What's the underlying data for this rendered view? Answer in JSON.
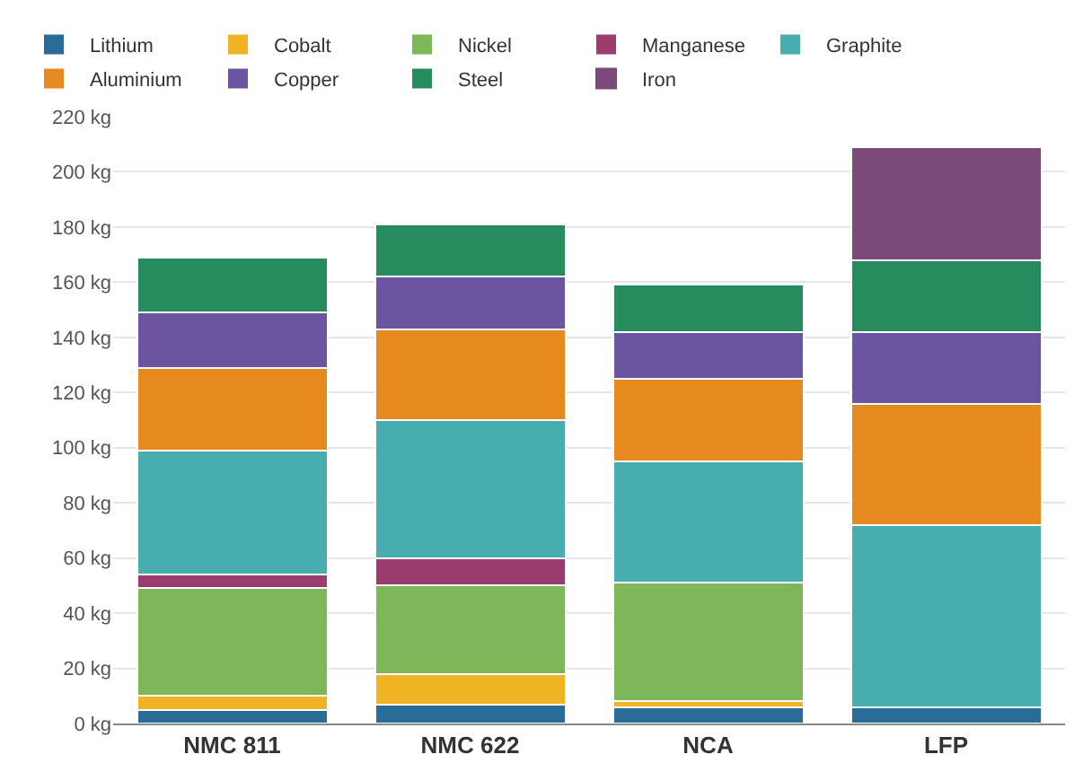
{
  "chart_data": {
    "type": "bar",
    "stacked": true,
    "categories": [
      "NMC 811",
      "NMC 622",
      "NCA",
      "LFP"
    ],
    "series": [
      {
        "name": "Lithium",
        "color": "#2a6c98",
        "values": [
          5,
          7,
          6,
          6
        ]
      },
      {
        "name": "Cobalt",
        "color": "#f0b323",
        "values": [
          5,
          11,
          2,
          0
        ]
      },
      {
        "name": "Nickel",
        "color": "#7eb65a",
        "values": [
          39,
          32,
          43,
          0
        ]
      },
      {
        "name": "Manganese",
        "color": "#9b3c6e",
        "values": [
          5,
          10,
          0,
          0
        ]
      },
      {
        "name": "Graphite",
        "color": "#48adaf",
        "values": [
          45,
          50,
          44,
          66
        ]
      },
      {
        "name": "Aluminium",
        "color": "#e6891f",
        "values": [
          30,
          33,
          30,
          44
        ]
      },
      {
        "name": "Copper",
        "color": "#6b55a0",
        "values": [
          20,
          19,
          17,
          26
        ]
      },
      {
        "name": "Steel",
        "color": "#268c5e",
        "values": [
          20,
          19,
          17,
          26
        ]
      },
      {
        "name": "Iron",
        "color": "#7b4a78",
        "values": [
          0,
          0,
          0,
          41
        ]
      }
    ],
    "ylim": [
      0,
      220
    ],
    "yticks": [
      {
        "value": 0,
        "label": "0 kg"
      },
      {
        "value": 20,
        "label": "20 kg"
      },
      {
        "value": 40,
        "label": "40 kg"
      },
      {
        "value": 60,
        "label": "60 kg"
      },
      {
        "value": 80,
        "label": "80 kg"
      },
      {
        "value": 100,
        "label": "100 kg"
      },
      {
        "value": 120,
        "label": "120 kg"
      },
      {
        "value": 140,
        "label": "140 kg"
      },
      {
        "value": 160,
        "label": "160 kg"
      },
      {
        "value": 180,
        "label": "180 kg"
      },
      {
        "value": 200,
        "label": "200 kg"
      },
      {
        "value": 220,
        "label": "220 kg"
      }
    ],
    "grid": "y",
    "legend": "top left"
  }
}
